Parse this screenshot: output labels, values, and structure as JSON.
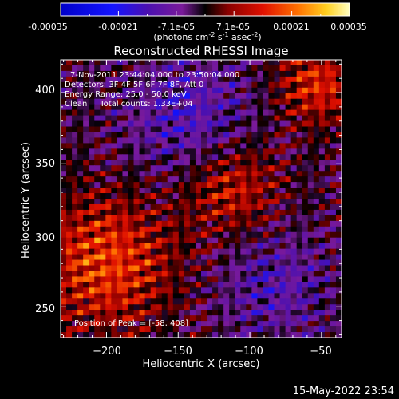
{
  "colorbar": {
    "ticks": [
      "-0.00035",
      "-0.00021",
      "-7.1e-05",
      "7.1e-05",
      "0.00021",
      "0.00035"
    ],
    "units_prefix": "(photons cm",
    "units_exp1": "-2",
    "units_mid": " s",
    "units_exp2": "-1",
    "units_mid2": " asec",
    "units_exp3": "-2",
    "units_suffix": ")"
  },
  "chart_data": {
    "type": "heatmap",
    "title": "Reconstructed RHESSI Image",
    "xlabel": "Heliocentric X (arcsec)",
    "ylabel": "Heliocentric Y (arcsec)",
    "xlim": [
      -232,
      -36
    ],
    "ylim": [
      228,
      423
    ],
    "x_ticks": [
      -200,
      -150,
      -100,
      -50
    ],
    "y_ticks": [
      250,
      300,
      350,
      400
    ],
    "x_tick_labels": [
      "−200",
      "−150",
      "−100",
      "−50"
    ],
    "y_tick_labels": [
      "250",
      "300",
      "350",
      "400"
    ],
    "colorbar_range": [
      -0.00035,
      0.00035
    ],
    "annotations": [
      "7-Nov-2011 23:44:04.000 to 23:50:04.000",
      "Detectors: 3F 4F 5F 6F 7F 8F, Att 0",
      "Energy Range: 25.0 - 50.0 keV",
      "Clean     Total counts: 1.33E+04"
    ],
    "peak_label": "Position of Peak = [-58, 408]",
    "peak_position": [
      -58,
      408
    ]
  },
  "footer": {
    "timestamp": "15-May-2022 23:54"
  }
}
